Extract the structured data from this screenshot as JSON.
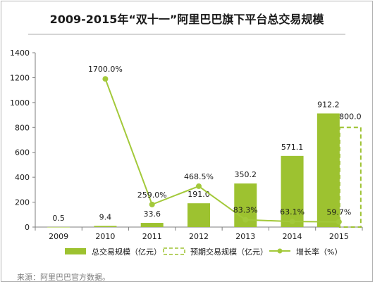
{
  "chart_data": {
    "type": "bar",
    "title": "2009-2015年“双十一”阿里巴巴旗下平台总交易规模",
    "categories": [
      "2009",
      "2010",
      "2011",
      "2012",
      "2013",
      "2014",
      "2015"
    ],
    "bar_labels": [
      "0.5",
      "9.4",
      "33.6",
      "191.0",
      "350.2",
      "571.1",
      "912.2"
    ],
    "projected_label": "800.0",
    "growth_labels": [
      "1700.0%",
      "259.0%",
      "468.5%",
      "83.3%",
      "63.1%",
      "59.7%"
    ],
    "series": [
      {
        "name": "总交易规模（亿元）",
        "kind": "bar",
        "values": [
          0.5,
          9.4,
          33.6,
          191.0,
          350.2,
          571.1,
          912.2
        ]
      },
      {
        "name": "预期交易规模（亿元）",
        "kind": "bar-dashed",
        "values": [
          null,
          null,
          null,
          null,
          null,
          null,
          800.0
        ]
      },
      {
        "name": "增长率（%）",
        "kind": "line",
        "values": [
          null,
          1700.0,
          259.0,
          468.5,
          83.3,
          63.1,
          59.7
        ]
      }
    ],
    "yticks": [
      "0",
      "200",
      "400",
      "600",
      "800",
      "1000",
      "1200",
      "1400"
    ],
    "ylim": [
      0,
      1400
    ],
    "growth_ylim": [
      0,
      2000
    ],
    "grid": false,
    "legend_position": "bottom",
    "colors": {
      "bar": "#9dc230",
      "line": "#a3c93a",
      "axis": "#7f7f7f"
    }
  },
  "source": "来源：阿里巴巴官方数据。"
}
